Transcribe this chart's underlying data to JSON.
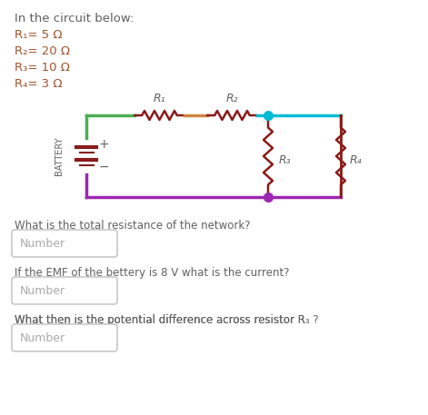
{
  "bg_color": "#ffffff",
  "text_color": "#606060",
  "title_line": "In the circuit below:",
  "resistors": [
    {
      "label": "R₁= 5 Ω"
    },
    {
      "label": "R₂= 20 Ω"
    },
    {
      "label": "R₃= 10 Ω"
    },
    {
      "label": "R₄= 3 Ω"
    }
  ],
  "questions": [
    "What is the total resistance of the network?",
    "If the EMF of the bettery is 8 V what is the current?",
    "What then is the potential difference across resistor R₃ ?"
  ],
  "input_placeholder": "Number",
  "circuit": {
    "green": "#4CAF50",
    "orange": "#CD853F",
    "cyan": "#00BCD4",
    "purple": "#9C27B0",
    "dark_red": "#8B1a1a",
    "battery_plate_color": "#8B1a1a",
    "R1_label": "R₁",
    "R2_label": "R₂",
    "R3_label": "R₃",
    "R4_label": "R₄"
  }
}
